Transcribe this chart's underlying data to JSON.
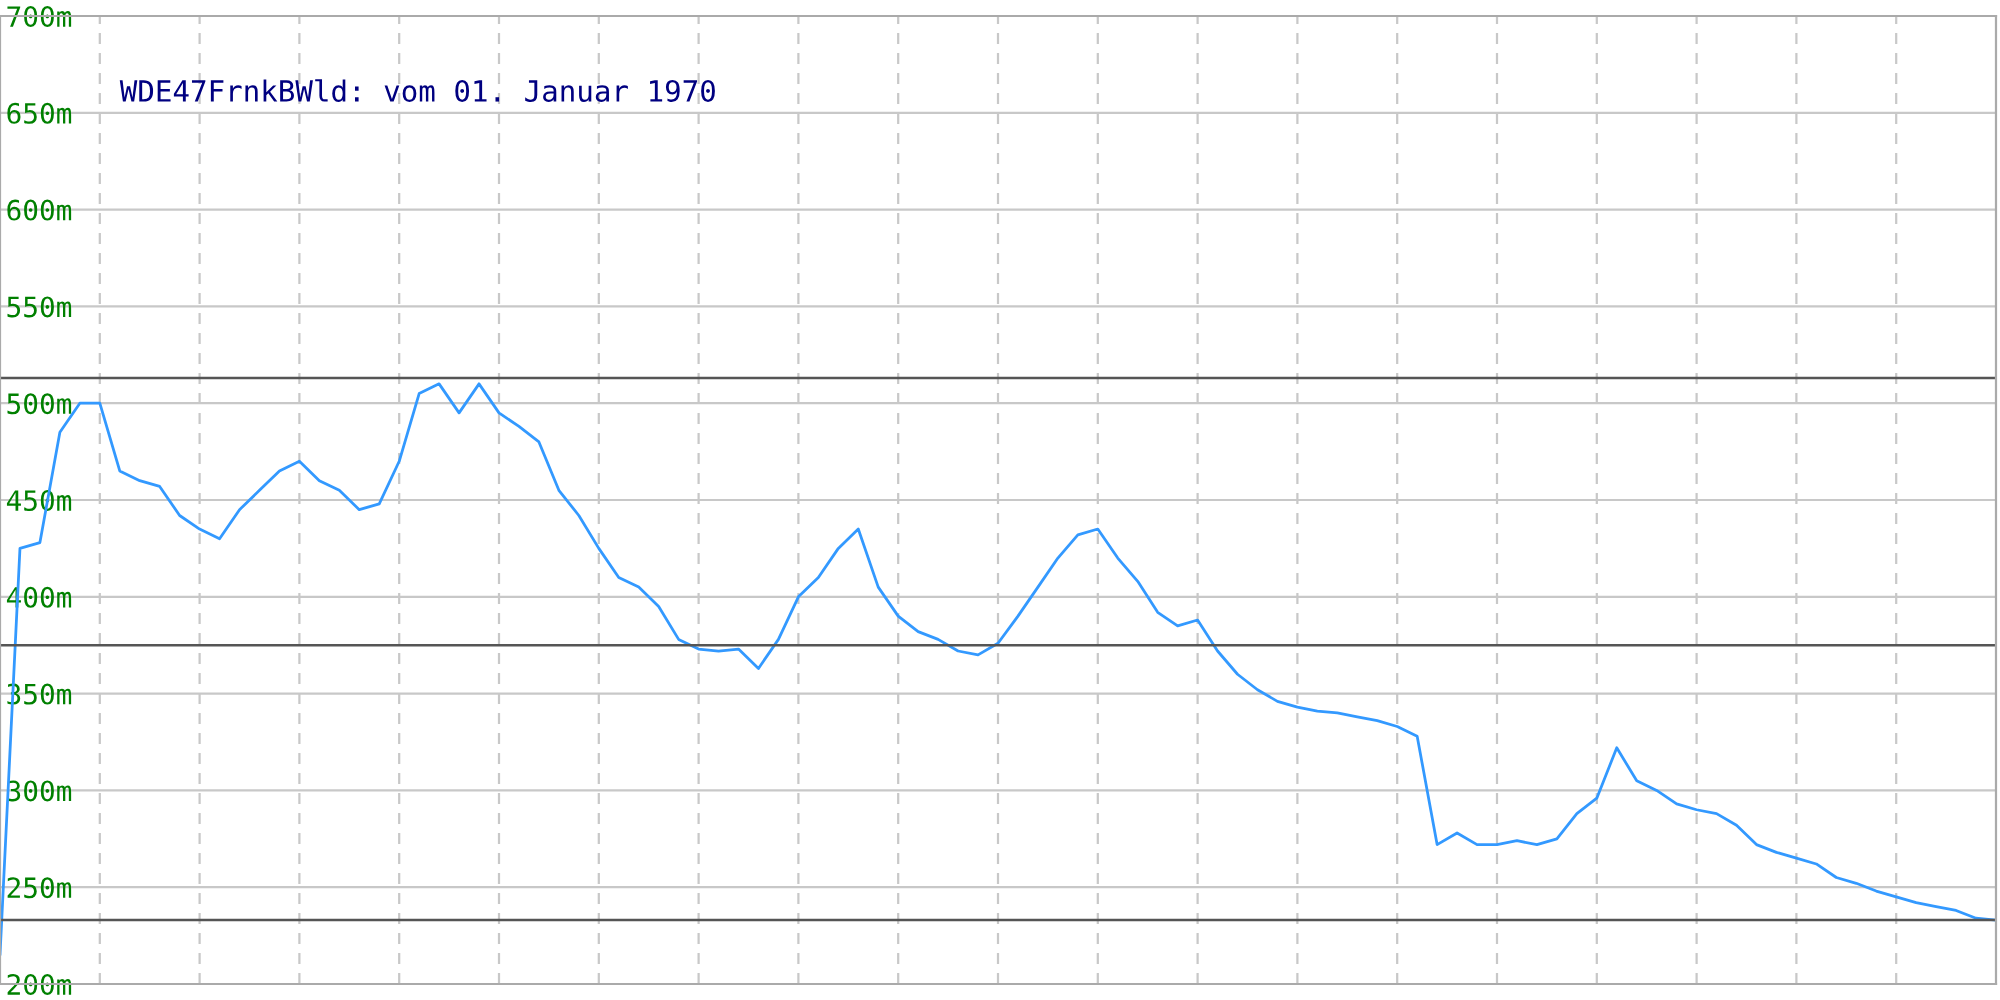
{
  "chart_data": {
    "type": "line",
    "title": "WDE47FrnkBWld: vom 01. Januar 1970",
    "categories": [
      null,
      null,
      null,
      null,
      null,
      null,
      null,
      null,
      null,
      null,
      null,
      null,
      null,
      null,
      null,
      null,
      null,
      null,
      null,
      null,
      null,
      null,
      null,
      null,
      null,
      null,
      null,
      null,
      null,
      null,
      null,
      null,
      null,
      null,
      null,
      null,
      null,
      null,
      null,
      null,
      null,
      null,
      null,
      null,
      null,
      null,
      null,
      null,
      null,
      null,
      null,
      null,
      null,
      null,
      null,
      null,
      null,
      null,
      null,
      null,
      null,
      null,
      null,
      null,
      null,
      null,
      null,
      null,
      null,
      null,
      null,
      null,
      null,
      null,
      null,
      null,
      null,
      null,
      null,
      null,
      null,
      null,
      null,
      null,
      null,
      null,
      null,
      null,
      null,
      null,
      null,
      null,
      null,
      null,
      null,
      null,
      null,
      null,
      null,
      null,
      null
    ],
    "series": [
      {
        "color": "#3399ff",
        "values": [
          215,
          425,
          428,
          485,
          500,
          500,
          465,
          460,
          457,
          442,
          435,
          430,
          445,
          455,
          465,
          470,
          460,
          455,
          445,
          448,
          470,
          505,
          510,
          495,
          510,
          495,
          488,
          480,
          455,
          442,
          425,
          410,
          405,
          395,
          378,
          373,
          372,
          373,
          363,
          378,
          400,
          410,
          425,
          435,
          405,
          390,
          382,
          378,
          372,
          370,
          376,
          390,
          405,
          420,
          432,
          435,
          420,
          408,
          392,
          385,
          388,
          372,
          360,
          352,
          346,
          343,
          341,
          340,
          338,
          336,
          333,
          328,
          272,
          278,
          272,
          272,
          274,
          272,
          275,
          288,
          296,
          322,
          305,
          300,
          293,
          290,
          288,
          282,
          272,
          268,
          265,
          262,
          255,
          252,
          248,
          245,
          242,
          240,
          238,
          234,
          233
        ]
      }
    ],
    "ylim": [
      200,
      700
    ],
    "yticks": [
      {
        "value": 200,
        "label": "200m"
      },
      {
        "value": 250,
        "label": "250m"
      },
      {
        "value": 300,
        "label": "300m"
      },
      {
        "value": 350,
        "label": "350m"
      },
      {
        "value": 400,
        "label": "400m"
      },
      {
        "value": 450,
        "label": "450m"
      },
      {
        "value": 500,
        "label": "500m"
      },
      {
        "value": 550,
        "label": "550m"
      },
      {
        "value": 600,
        "label": "600m"
      },
      {
        "value": 650,
        "label": "650m"
      },
      {
        "value": 700,
        "label": "700m"
      }
    ],
    "ref_lines": [
      {
        "axis": "y",
        "value": 513,
        "color": "#555555"
      },
      {
        "axis": "y",
        "value": 375,
        "color": "#555555"
      },
      {
        "axis": "y",
        "value": 233,
        "color": "#555555"
      }
    ],
    "grid": true,
    "tick_labels": "y"
  }
}
